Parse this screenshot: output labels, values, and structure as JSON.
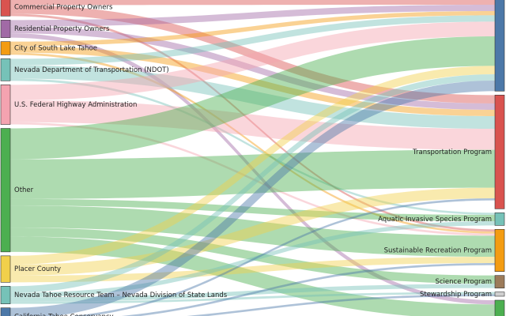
{
  "chart_data": {
    "type": "sankey",
    "title": "",
    "sources": [
      {
        "name": "Commercial Property Owners",
        "value": 4,
        "color": "#d9534f"
      },
      {
        "name": "Residential Property Owners",
        "value": 4,
        "color": "#a16aa6"
      },
      {
        "name": "City of South Lake Tahoe",
        "value": 3,
        "color": "#f39c12"
      },
      {
        "name": "Nevada Department of Transportation (NDOT)",
        "value": 5,
        "color": "#76c2b8"
      },
      {
        "name": "U.S. Federal Highway Administration",
        "value": 9,
        "color": "#f4a3b0"
      },
      {
        "name": "Other",
        "value": 28,
        "color": "#4caf50"
      },
      {
        "name": "Placer County",
        "value": 6,
        "color": "#f1d04b"
      },
      {
        "name": "Nevada Tahoe Resource Team – Nevada Division of State Lands",
        "value": 4,
        "color": "#76c2b8"
      },
      {
        "name": "California Tahoe Conservancy",
        "value": 4,
        "color": "#4c78a8"
      }
    ],
    "targets": [
      {
        "name": "",
        "value": 22,
        "color": "#4c78a8"
      },
      {
        "name": "Transportation Program",
        "value": 27,
        "color": "#d9534f"
      },
      {
        "name": "Aquatic Invasive Species Program",
        "value": 3,
        "color": "#76c2b8"
      },
      {
        "name": "Sustainable Recreation Program",
        "value": 10,
        "color": "#f39c12"
      },
      {
        "name": "Science Program",
        "value": 3,
        "color": "#9c7b5a"
      },
      {
        "name": "Stewardship Program",
        "value": 1,
        "color": "#cfcfcf"
      },
      {
        "name": "",
        "value": 6,
        "color": "#4caf50"
      }
    ],
    "links": [
      {
        "source": 0,
        "target": 0,
        "value": 1.5
      },
      {
        "source": 0,
        "target": 1,
        "value": 2.0
      },
      {
        "source": 0,
        "target": 3,
        "value": 0.5
      },
      {
        "source": 1,
        "target": 0,
        "value": 1.5
      },
      {
        "source": 1,
        "target": 1,
        "value": 1.5
      },
      {
        "source": 1,
        "target": 6,
        "value": 1.0
      },
      {
        "source": 2,
        "target": 0,
        "value": 1.0
      },
      {
        "source": 2,
        "target": 1,
        "value": 1.5
      },
      {
        "source": 2,
        "target": 3,
        "value": 0.5
      },
      {
        "source": 3,
        "target": 0,
        "value": 1.5
      },
      {
        "source": 3,
        "target": 1,
        "value": 3.0
      },
      {
        "source": 3,
        "target": 2,
        "value": 0.5
      },
      {
        "source": 4,
        "target": 0,
        "value": 3.5
      },
      {
        "source": 4,
        "target": 1,
        "value": 5.0
      },
      {
        "source": 4,
        "target": 3,
        "value": 0.5
      },
      {
        "source": 5,
        "target": 0,
        "value": 7.0
      },
      {
        "source": 5,
        "target": 1,
        "value": 9.0
      },
      {
        "source": 5,
        "target": 2,
        "value": 1.5
      },
      {
        "source": 5,
        "target": 3,
        "value": 5.0
      },
      {
        "source": 5,
        "target": 4,
        "value": 2.0
      },
      {
        "source": 5,
        "target": 6,
        "value": 3.5
      },
      {
        "source": 6,
        "target": 0,
        "value": 2.0
      },
      {
        "source": 6,
        "target": 1,
        "value": 2.5
      },
      {
        "source": 6,
        "target": 3,
        "value": 1.5
      },
      {
        "source": 7,
        "target": 0,
        "value": 1.5
      },
      {
        "source": 7,
        "target": 2,
        "value": 1.0
      },
      {
        "source": 7,
        "target": 4,
        "value": 1.0
      },
      {
        "source": 7,
        "target": 5,
        "value": 0.5
      },
      {
        "source": 8,
        "target": 0,
        "value": 2.5
      },
      {
        "source": 8,
        "target": 1,
        "value": 0.5
      },
      {
        "source": 8,
        "target": 3,
        "value": 0.5
      },
      {
        "source": 8,
        "target": 5,
        "value": 0.5
      }
    ]
  }
}
